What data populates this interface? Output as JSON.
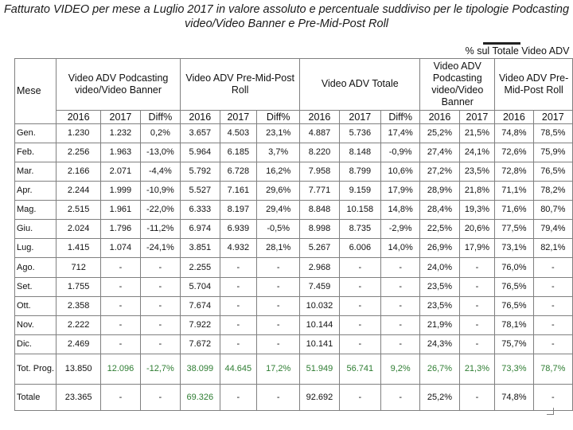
{
  "title": "Fatturato VIDEO per mese a Luglio 2017 in valore assoluto e percentuale suddiviso per le tipologie Podcasting video/Video Banner e Pre-Mid-Post Roll",
  "pct_header": "% sul Totale Video ADV",
  "col_mese": "Mese",
  "groups": {
    "podcasting": "Video ADV Podcasting video/Video Banner",
    "preroll": "Video ADV Pre-Mid-Post Roll",
    "totale": "Video ADV Totale",
    "pct_podcasting": "Video ADV Podcasting video/Video Banner",
    "pct_preroll": "Video ADV Pre-Mid-Post Roll"
  },
  "sub": {
    "y2016": "2016",
    "y2017": "2017",
    "diff": "Diff%"
  },
  "rows": [
    {
      "m": "Gen.",
      "a": "1.230",
      "b": "1.232",
      "c": "0,2%",
      "d": "3.657",
      "e": "4.503",
      "f": "23,1%",
      "g": "4.887",
      "h": "5.736",
      "i": "17,4%",
      "j": "25,2%",
      "k": "21,5%",
      "l": "74,8%",
      "n": "78,5%"
    },
    {
      "m": "Feb.",
      "a": "2.256",
      "b": "1.963",
      "c": "-13,0%",
      "d": "5.964",
      "e": "6.185",
      "f": "3,7%",
      "g": "8.220",
      "h": "8.148",
      "i": "-0,9%",
      "j": "27,4%",
      "k": "24,1%",
      "l": "72,6%",
      "n": "75,9%"
    },
    {
      "m": "Mar.",
      "a": "2.166",
      "b": "2.071",
      "c": "-4,4%",
      "d": "5.792",
      "e": "6.728",
      "f": "16,2%",
      "g": "7.958",
      "h": "8.799",
      "i": "10,6%",
      "j": "27,2%",
      "k": "23,5%",
      "l": "72,8%",
      "n": "76,5%"
    },
    {
      "m": "Apr.",
      "a": "2.244",
      "b": "1.999",
      "c": "-10,9%",
      "d": "5.527",
      "e": "7.161",
      "f": "29,6%",
      "g": "7.771",
      "h": "9.159",
      "i": "17,9%",
      "j": "28,9%",
      "k": "21,8%",
      "l": "71,1%",
      "n": "78,2%"
    },
    {
      "m": "Mag.",
      "a": "2.515",
      "b": "1.961",
      "c": "-22,0%",
      "d": "6.333",
      "e": "8.197",
      "f": "29,4%",
      "g": "8.848",
      "h": "10.158",
      "i": "14,8%",
      "j": "28,4%",
      "k": "19,3%",
      "l": "71,6%",
      "n": "80,7%"
    },
    {
      "m": "Giu.",
      "a": "2.024",
      "b": "1.796",
      "c": "-11,2%",
      "d": "6.974",
      "e": "6.939",
      "f": "-0,5%",
      "g": "8.998",
      "h": "8.735",
      "i": "-2,9%",
      "j": "22,5%",
      "k": "20,6%",
      "l": "77,5%",
      "n": "79,4%"
    },
    {
      "m": "Lug.",
      "a": "1.415",
      "b": "1.074",
      "c": "-24,1%",
      "d": "3.851",
      "e": "4.932",
      "f": "28,1%",
      "g": "5.267",
      "h": "6.006",
      "i": "14,0%",
      "j": "26,9%",
      "k": "17,9%",
      "l": "73,1%",
      "n": "82,1%"
    },
    {
      "m": "Ago.",
      "a": "712",
      "b": "-",
      "c": "-",
      "d": "2.255",
      "e": "-",
      "f": "-",
      "g": "2.968",
      "h": "-",
      "i": "-",
      "j": "24,0%",
      "k": "-",
      "l": "76,0%",
      "n": "-"
    },
    {
      "m": "Set.",
      "a": "1.755",
      "b": "-",
      "c": "-",
      "d": "5.704",
      "e": "-",
      "f": "-",
      "g": "7.459",
      "h": "-",
      "i": "-",
      "j": "23,5%",
      "k": "-",
      "l": "76,5%",
      "n": "-"
    },
    {
      "m": "Ott.",
      "a": "2.358",
      "b": "-",
      "c": "-",
      "d": "7.674",
      "e": "-",
      "f": "-",
      "g": "10.032",
      "h": "-",
      "i": "-",
      "j": "23,5%",
      "k": "-",
      "l": "76,5%",
      "n": "-"
    },
    {
      "m": "Nov.",
      "a": "2.222",
      "b": "-",
      "c": "-",
      "d": "7.922",
      "e": "-",
      "f": "-",
      "g": "10.144",
      "h": "-",
      "i": "-",
      "j": "21,9%",
      "k": "-",
      "l": "78,1%",
      "n": "-"
    },
    {
      "m": "Dic.",
      "a": "2.469",
      "b": "-",
      "c": "-",
      "d": "7.672",
      "e": "-",
      "f": "-",
      "g": "10.141",
      "h": "-",
      "i": "-",
      "j": "24,3%",
      "k": "-",
      "l": "75,7%",
      "n": "-"
    }
  ],
  "tot_prog": {
    "m": "Tot. Prog.",
    "a": "13.850",
    "b": "12.096",
    "c": "-12,7%",
    "d": "38.099",
    "e": "44.645",
    "f": "17,2%",
    "g": "51.949",
    "h": "56.741",
    "i": "9,2%",
    "j": "26,7%",
    "k": "21,3%",
    "l": "73,3%",
    "n": "78,7%"
  },
  "totale": {
    "m": "Totale",
    "a": "23.365",
    "b": "-",
    "c": "-",
    "d": "69.326",
    "e": "-",
    "f": "-",
    "g": "92.692",
    "h": "-",
    "i": "-",
    "j": "25,2%",
    "k": "-",
    "l": "74,8%",
    "n": "-"
  },
  "colors": {
    "highlight_green": "#2e7d32",
    "border": "#808080"
  }
}
